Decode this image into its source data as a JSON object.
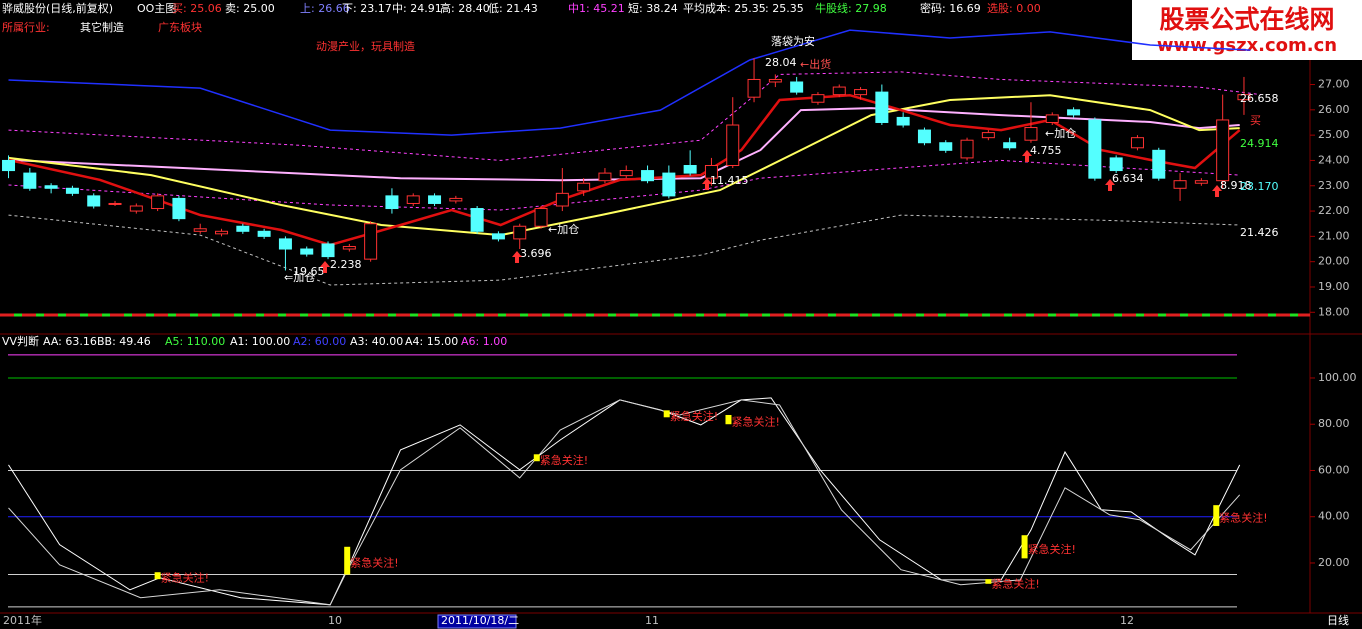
{
  "header": {
    "title": "骅威股份(日线,前复权)",
    "indicator": "OO主图",
    "items": [
      {
        "text": "买: 25.06",
        "color": "#ff3232"
      },
      {
        "text": "卖: 25.00",
        "color": "#ffffff"
      },
      {
        "text": "上: 26.66",
        "color": "#8080ff"
      },
      {
        "text": "下: 23.17",
        "color": "#ffffff"
      },
      {
        "text": "中: 24.91",
        "color": "#ffffff"
      },
      {
        "text": "高: 28.40",
        "color": "#ffffff"
      },
      {
        "text": "低: 21.43",
        "color": "#ffffff"
      },
      {
        "text": "中1: 45.21",
        "color": "#ff40ff"
      },
      {
        "text": "短: 38.24",
        "color": "#ffffff"
      },
      {
        "text": "平均成本: 25.35",
        "color": "#ffffff"
      },
      {
        "text": ": 25.35",
        "color": "#ffffff"
      },
      {
        "text": "牛股线: 27.98",
        "color": "#40ff40"
      },
      {
        "text": "密码: 16.69",
        "color": "#ffffff"
      },
      {
        "text": "选股: 0.00",
        "color": "#ff3232"
      }
    ]
  },
  "info": {
    "industry_label": "所属行业:",
    "industry": "其它制造",
    "region": "广东板块",
    "concept": "动漫产业，玩具制造"
  },
  "logo": {
    "name": "股票公式在线网",
    "url": "www.gszx.com.cn"
  },
  "chart_data": [
    {
      "type": "candlestick",
      "xlim": [
        -0.4,
        61.1
      ],
      "ylim": [
        17.3,
        30.34
      ],
      "yticks": [
        {
          "value": 27,
          "label": "27.00"
        },
        {
          "value": 26,
          "label": "26.00"
        },
        {
          "value": 25,
          "label": "25.00"
        },
        {
          "value": 24,
          "label": "24.00"
        },
        {
          "value": 23,
          "label": "23.00"
        },
        {
          "value": 22,
          "label": "22.00"
        },
        {
          "value": 21,
          "label": "21.00"
        },
        {
          "value": 20,
          "label": "20.00"
        },
        {
          "value": 19,
          "label": "19.00"
        },
        {
          "value": 18,
          "label": "18.00"
        }
      ],
      "up_color": "#ff3232",
      "down_color": "#54ffff",
      "open": [
        24.0,
        23.5,
        23.0,
        22.9,
        22.6,
        22.3,
        22.0,
        22.1,
        22.5,
        21.2,
        21.1,
        21.4,
        21.2,
        20.9,
        20.5,
        20.7,
        20.5,
        20.1,
        22.6,
        22.3,
        22.6,
        22.4,
        22.1,
        21.1,
        20.9,
        21.4,
        22.2,
        22.8,
        23.2,
        23.4,
        23.6,
        23.5,
        23.8,
        23.3,
        23.8,
        26.5,
        27.1,
        27.1,
        26.3,
        26.6,
        26.6,
        26.7,
        25.7,
        25.2,
        24.7,
        24.1,
        24.9,
        24.7,
        24.8,
        25.5,
        26.0,
        25.6,
        24.1,
        24.5,
        24.4,
        22.9,
        23.1,
        23.2,
        26.4
      ],
      "high": [
        24.2,
        23.7,
        23.1,
        23.0,
        22.7,
        22.4,
        22.3,
        22.7,
        22.6,
        21.5,
        21.3,
        21.5,
        21.3,
        21.0,
        20.6,
        20.8,
        20.7,
        21.6,
        22.9,
        22.7,
        22.7,
        22.6,
        22.2,
        21.2,
        21.5,
        22.2,
        23.7,
        23.3,
        23.7,
        23.8,
        23.8,
        23.8,
        24.4,
        24.1,
        26.5,
        28.04,
        27.4,
        27.3,
        26.7,
        27.0,
        26.9,
        27.0,
        25.9,
        25.3,
        24.8,
        24.9,
        25.2,
        24.9,
        26.3,
        25.9,
        26.1,
        25.7,
        24.2,
        25.0,
        24.5,
        23.5,
        23.3,
        26.6,
        27.3
      ],
      "low": [
        23.3,
        22.8,
        22.7,
        22.6,
        22.1,
        22.2,
        21.9,
        22.0,
        21.6,
        21.1,
        21.0,
        21.1,
        20.9,
        19.65,
        20.2,
        20.1,
        20.4,
        20.0,
        21.9,
        22.2,
        22.2,
        22.3,
        21.1,
        20.8,
        20.5,
        21.3,
        22.0,
        22.6,
        23.1,
        23.3,
        23.1,
        22.5,
        23.4,
        23.0,
        23.7,
        26.3,
        26.9,
        26.6,
        26.2,
        26.5,
        26.4,
        25.4,
        25.3,
        24.6,
        24.3,
        24.0,
        24.8,
        24.4,
        24.7,
        25.4,
        25.7,
        23.2,
        23.5,
        24.4,
        23.2,
        22.4,
        23.0,
        22.9,
        25.8
      ],
      "close": [
        23.6,
        22.9,
        22.9,
        22.7,
        22.2,
        22.3,
        22.2,
        22.6,
        21.7,
        21.3,
        21.2,
        21.2,
        21.0,
        20.5,
        20.3,
        20.2,
        20.6,
        21.5,
        22.1,
        22.6,
        22.3,
        22.5,
        21.2,
        20.9,
        21.4,
        22.1,
        22.7,
        23.1,
        23.5,
        23.6,
        23.2,
        22.6,
        23.5,
        23.8,
        25.4,
        27.2,
        27.2,
        26.7,
        26.6,
        26.9,
        26.8,
        25.5,
        25.4,
        24.7,
        24.4,
        24.8,
        25.1,
        24.5,
        25.3,
        25.8,
        25.8,
        23.3,
        23.6,
        24.9,
        23.3,
        23.2,
        23.2,
        25.6,
        26.6
      ],
      "lines": [
        {
          "color": "#2030ff",
          "dashed": false,
          "width": 1.5,
          "x": [
            0,
            9,
            15.1,
            20.8,
            25.9,
            30.6,
            34.8,
            39.5,
            44.2,
            48.9,
            53.6,
            58.3
          ],
          "values": [
            27.18,
            26.86,
            25.2,
            25.0,
            25.28,
            25.99,
            27.97,
            29.15,
            28.84,
            29.08,
            28.56,
            28.36
          ]
        },
        {
          "color": "#ff40ff",
          "dashed": true,
          "width": 1,
          "x": [
            0,
            13.7,
            23.1,
            32.5,
            36.2,
            41.9,
            46.6,
            55.9,
            58.8
          ],
          "values": [
            25.2,
            24.6,
            24.0,
            24.8,
            27.4,
            27.5,
            27.2,
            26.9,
            26.6
          ]
        },
        {
          "color": "#ff40ff",
          "dashed": true,
          "width": 1,
          "x": [
            0,
            15.1,
            23.1,
            32.5,
            35.3,
            46.6,
            57.8
          ],
          "values": [
            23.03,
            22.24,
            22.04,
            22.83,
            23.3,
            24.0,
            23.42
          ]
        },
        {
          "color": "#c0c0c0",
          "dashed": true,
          "width": 1,
          "x": [
            0,
            9,
            15.1,
            23.1,
            32.5,
            35.3,
            41.9,
            51.3,
            57.8
          ],
          "values": [
            21.84,
            21.05,
            19.08,
            19.27,
            20.26,
            20.85,
            21.84,
            21.64,
            21.45
          ]
        },
        {
          "color": "#ffb0ff",
          "dashed": false,
          "width": 2,
          "x": [
            0,
            18.4,
            25.9,
            32.5,
            35.3,
            37.2,
            40.5,
            46.6,
            53.6,
            55.9,
            57.8
          ],
          "values": [
            24.02,
            23.3,
            23.22,
            23.3,
            24.41,
            25.99,
            26.07,
            25.79,
            25.52,
            25.28,
            25.4
          ]
        },
        {
          "color": "#ffff60",
          "dashed": false,
          "width": 2,
          "x": [
            0,
            6.7,
            12.8,
            17.5,
            23.1,
            27.8,
            33.4,
            37.2,
            40.5,
            44.2,
            48.9,
            53.6,
            55.9,
            57.8
          ],
          "values": [
            24.1,
            23.42,
            22.24,
            21.45,
            21.05,
            21.84,
            22.83,
            24.41,
            25.79,
            26.39,
            26.58,
            25.99,
            25.2,
            25.28
          ]
        },
        {
          "color": "#e01010",
          "dashed": false,
          "width": 2.5,
          "x": [
            0,
            4.3,
            9,
            12.8,
            15.1,
            18.4,
            20.8,
            23.1,
            25.9,
            28.7,
            32.5,
            34.4,
            36.2,
            39.5,
            41.9,
            44.2,
            46.6,
            48.9,
            51.3,
            53.6,
            55.7,
            57.8
          ],
          "values": [
            24.02,
            23.23,
            21.84,
            21.25,
            20.66,
            21.45,
            22.04,
            21.45,
            22.44,
            23.23,
            23.42,
            24.41,
            26.39,
            26.58,
            25.99,
            25.4,
            25.2,
            25.6,
            24.41,
            24.02,
            23.7,
            25.2
          ]
        }
      ],
      "annotations": [
        {
          "text": "落袋为安",
          "color": "#ffffff"
        },
        {
          "text": "28.04",
          "color": "#ffffff"
        },
        {
          "text": "←出货",
          "color": "#ff5050"
        },
        {
          "text": "←加仓",
          "color": "#ffffff"
        },
        {
          "text": "3.696",
          "color": "#ffffff"
        },
        {
          "text": "11.415",
          "color": "#ffffff"
        },
        {
          "text": "2.238",
          "color": "#ffffff"
        },
        {
          "text": "⇐加仓",
          "color": "#ffffff"
        },
        {
          "text": "19.65",
          "color": "#ffffff"
        },
        {
          "text": "4.755",
          "color": "#ffffff"
        },
        {
          "text": "←加仓",
          "color": "#ffffff"
        },
        {
          "text": "6.634",
          "color": "#ffffff"
        },
        {
          "text": "8.918",
          "color": "#ffffff"
        },
        {
          "text": "26.658",
          "color": "#ffffff"
        },
        {
          "text": "买",
          "color": "#ff3232"
        },
        {
          "text": "24.914",
          "color": "#40ff40"
        },
        {
          "text": "23.170",
          "color": "#54ffff"
        },
        {
          "text": "21.426",
          "color": "#ffffff"
        }
      ]
    },
    {
      "type": "line",
      "title": "VV判断",
      "xlim": [
        -0.4,
        61.1
      ],
      "ylim": [
        -1.2,
        112.1
      ],
      "yticks": [
        {
          "value": 100,
          "label": "100.00"
        },
        {
          "value": 80,
          "label": "80.00"
        },
        {
          "value": 60,
          "label": "60.00"
        },
        {
          "value": 40,
          "label": "40.00"
        },
        {
          "value": 20,
          "label": "20.00"
        }
      ],
      "readouts": [
        {
          "text": "AA: 63.16",
          "color": "#ffffff"
        },
        {
          "text": "BB: 49.46",
          "color": "#ffffff"
        }
      ],
      "levels": [
        {
          "text": "A5: 110.00",
          "text_color": "#40ff40",
          "value": 110,
          "color": "#ff40ff"
        },
        {
          "text": "A1: 100.00",
          "text_color": "#ffffff",
          "value": 100,
          "color": "#00c000"
        },
        {
          "text": "A2: 60.00",
          "text_color": "#4040ff",
          "value": 60,
          "color": "#d0d0d0"
        },
        {
          "text": "A3: 40.00",
          "text_color": "#ffffff",
          "value": 40,
          "color": "#2020ff"
        },
        {
          "text": "A4: 15.00",
          "text_color": "#ffffff",
          "value": 15,
          "color": "#d0d0d0"
        },
        {
          "text": "A6: 1.00",
          "text_color": "#ff40ff",
          "value": 1,
          "color": "#d0d0d0"
        }
      ],
      "series": [
        {
          "color": "#ffffff",
          "x": [
            0,
            2.4,
            5.7,
            7.1,
            10.9,
            15.1,
            16.1,
            18.4,
            21.2,
            24.0,
            25.9,
            28.7,
            30.6,
            32.5,
            34.4,
            35.8,
            38.1,
            40.9,
            43.8,
            46.6,
            48.0,
            49.6,
            51.3,
            52.7,
            54.6,
            55.7,
            57.8
          ],
          "values": [
            62.4,
            27.9,
            8.4,
            13.6,
            5.0,
            1.9,
            21.4,
            68.9,
            79.7,
            60.3,
            73.2,
            90.5,
            86.2,
            79.7,
            90.5,
            91.4,
            60.3,
            30.0,
            12.7,
            12.7,
            34.3,
            68.0,
            43.0,
            42.1,
            30.0,
            23.5,
            62.4
          ]
        },
        {
          "color": "#d8d8d8",
          "x": [
            0,
            2.4,
            6.2,
            9.9,
            15.1,
            15.8,
            18.4,
            21.2,
            24.0,
            25.9,
            28.7,
            31.5,
            34.4,
            36.2,
            39.1,
            41.9,
            44.7,
            47.5,
            49.6,
            51.7,
            53.1,
            55.5,
            57.8
          ],
          "values": [
            43.8,
            19.2,
            5.0,
            8.4,
            1.9,
            14.9,
            60.3,
            78.4,
            56.8,
            77.5,
            90.5,
            84.0,
            90.5,
            88.3,
            43.0,
            17.1,
            10.6,
            12.7,
            52.5,
            40.8,
            38.7,
            25.7,
            49.5
          ]
        }
      ],
      "signals": {
        "text": "紧急关注!",
        "color": "#ffff00",
        "text_color": "#ff3232",
        "x": [
          7.0,
          15.9,
          24.8,
          30.9,
          33.8,
          46.0,
          47.7,
          56.7
        ],
        "low": [
          13,
          15,
          64,
          83,
          80,
          11,
          22,
          36
        ],
        "high": [
          16,
          27,
          67,
          86,
          84,
          13,
          32,
          45
        ]
      }
    }
  ],
  "date_bar": {
    "labels": [
      "2011年",
      "10",
      "2011/10/18/二",
      "11",
      "12"
    ],
    "period": "日线"
  }
}
